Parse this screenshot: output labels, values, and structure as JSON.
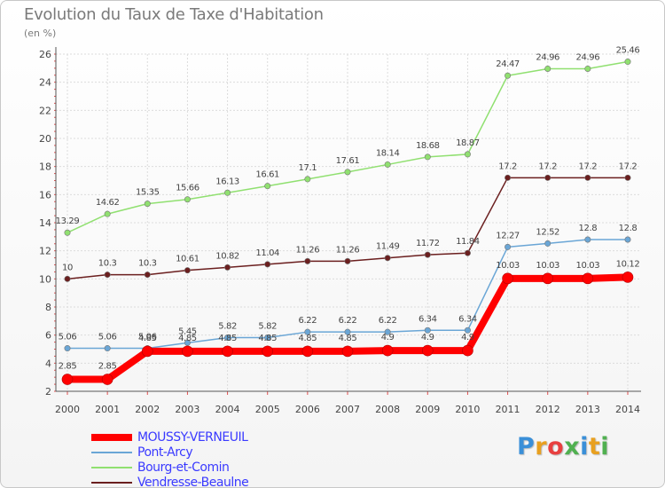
{
  "header": {
    "title": "Evolution du Taux de Taxe d'Habitation",
    "subtitle": "(en %)"
  },
  "logo": {
    "text": "Proxiti",
    "letter_colors": [
      "#3a8fd8",
      "#e8a020",
      "#e84040",
      "#50b050",
      "#3a8fd8",
      "#e8a020",
      "#50b050"
    ]
  },
  "chart_data": {
    "type": "line",
    "title": "Evolution du Taux de Taxe d'Habitation",
    "ylabel": "(en %)",
    "xlabel": "",
    "x": [
      "2000",
      "2001",
      "2002",
      "2003",
      "2004",
      "2005",
      "2006",
      "2007",
      "2008",
      "2009",
      "2010",
      "2011",
      "2012",
      "2013",
      "2014"
    ],
    "ylim": [
      2,
      26
    ],
    "yticks": [
      2,
      4,
      6,
      8,
      10,
      12,
      14,
      16,
      18,
      20,
      22,
      24,
      26
    ],
    "grid": true,
    "legend_position": "bottom-left",
    "series": [
      {
        "name": "MOUSSY-VERNEUIL",
        "color": "#ff0000",
        "emphasis": true,
        "values": [
          2.85,
          2.85,
          4.85,
          4.85,
          4.85,
          4.85,
          4.85,
          4.85,
          4.9,
          4.9,
          4.9,
          10.03,
          10.03,
          10.03,
          10.12
        ],
        "labels": [
          "2.85",
          "2.85",
          "4.85",
          "4.85",
          "4.85",
          "4.85",
          "4.85",
          "4.85",
          "4.9",
          "4.9",
          "4.9",
          "10.03",
          "10.03",
          "10.03",
          "10.12"
        ]
      },
      {
        "name": "Pont-Arcy",
        "color": "#6aa6d6",
        "emphasis": false,
        "values": [
          5.06,
          5.06,
          5.06,
          5.45,
          5.82,
          5.82,
          6.22,
          6.22,
          6.22,
          6.34,
          6.34,
          12.27,
          12.52,
          12.8,
          12.8
        ],
        "labels": [
          "5.06",
          "5.06",
          "5.06",
          "5.45",
          "5.82",
          "5.82",
          "6.22",
          "6.22",
          "6.22",
          "6.34",
          "6.34",
          "12.27",
          "12.52",
          "12.8",
          "12.8"
        ]
      },
      {
        "name": "Bourg-et-Comin",
        "color": "#90e070",
        "emphasis": false,
        "values": [
          13.29,
          14.62,
          15.35,
          15.66,
          16.13,
          16.61,
          17.1,
          17.61,
          18.14,
          18.68,
          18.87,
          24.47,
          24.96,
          24.96,
          25.46
        ],
        "labels": [
          "13.29",
          "14.62",
          "15.35",
          "15.66",
          "16.13",
          "16.61",
          "17.1",
          "17.61",
          "18.14",
          "18.68",
          "18.87",
          "24.47",
          "24.96",
          "24.96",
          "25.46"
        ]
      },
      {
        "name": "Vendresse-Beaulne",
        "color": "#6b1f1f",
        "emphasis": false,
        "values": [
          10,
          10.3,
          10.3,
          10.61,
          10.82,
          11.04,
          11.26,
          11.26,
          11.49,
          11.72,
          11.84,
          17.2,
          17.2,
          17.2,
          17.2
        ],
        "labels": [
          "10",
          "10.3",
          "10.3",
          "10.61",
          "10.82",
          "11.04",
          "11.26",
          "11.26",
          "11.49",
          "11.72",
          "11.84",
          "17.2",
          "17.2",
          "17.2",
          "17.2"
        ]
      }
    ]
  }
}
